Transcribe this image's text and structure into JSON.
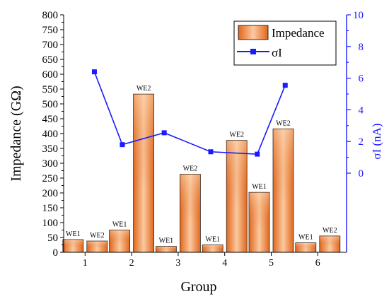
{
  "chart_data": {
    "type": "bar",
    "xlabel": "Group",
    "ylabel": "Impedance (GΩ)",
    "y2label": "σI (nA)",
    "ylim": [
      0,
      800
    ],
    "yticks": [
      "0",
      "50",
      "100",
      "150",
      "200",
      "250",
      "300",
      "350",
      "400",
      "450",
      "500",
      "550",
      "600",
      "650",
      "700",
      "750",
      "800"
    ],
    "y2lim": [
      -5,
      10
    ],
    "y2ticks": [
      "0",
      "2",
      "4",
      "6",
      "8",
      "10"
    ],
    "categories": [
      "1",
      "2",
      "3",
      "4",
      "5",
      "6"
    ],
    "bars": [
      {
        "group": 1,
        "label": "WE1",
        "value": 43
      },
      {
        "group": 1,
        "label": "WE2",
        "value": 38
      },
      {
        "group": 2,
        "label": "WE1",
        "value": 75
      },
      {
        "group": 2,
        "label": "WE2",
        "value": 533
      },
      {
        "group": 3,
        "label": "WE1",
        "value": 20
      },
      {
        "group": 3,
        "label": "WE2",
        "value": 263
      },
      {
        "group": 4,
        "label": "WE1",
        "value": 25
      },
      {
        "group": 4,
        "label": "WE2",
        "value": 377
      },
      {
        "group": 5,
        "label": "WE1",
        "value": 202
      },
      {
        "group": 5,
        "label": "WE2",
        "value": 416
      },
      {
        "group": 6,
        "label": "WE1",
        "value": 32
      },
      {
        "group": 6,
        "label": "WE2",
        "value": 55
      }
    ],
    "series": [
      {
        "name": "Impedance",
        "type": "bar",
        "color": "#ea7a2e"
      },
      {
        "name": "σI",
        "type": "line",
        "color": "#1a1aff",
        "marker": "square",
        "x": [
          1.2,
          1.8,
          2.7,
          3.7,
          4.7,
          5.3
        ],
        "values": [
          6.4,
          1.8,
          2.55,
          1.35,
          1.2,
          5.55
        ]
      }
    ],
    "legend": {
      "position": "top-right",
      "entries": [
        "Impedance",
        "σI"
      ]
    },
    "grid": false
  }
}
